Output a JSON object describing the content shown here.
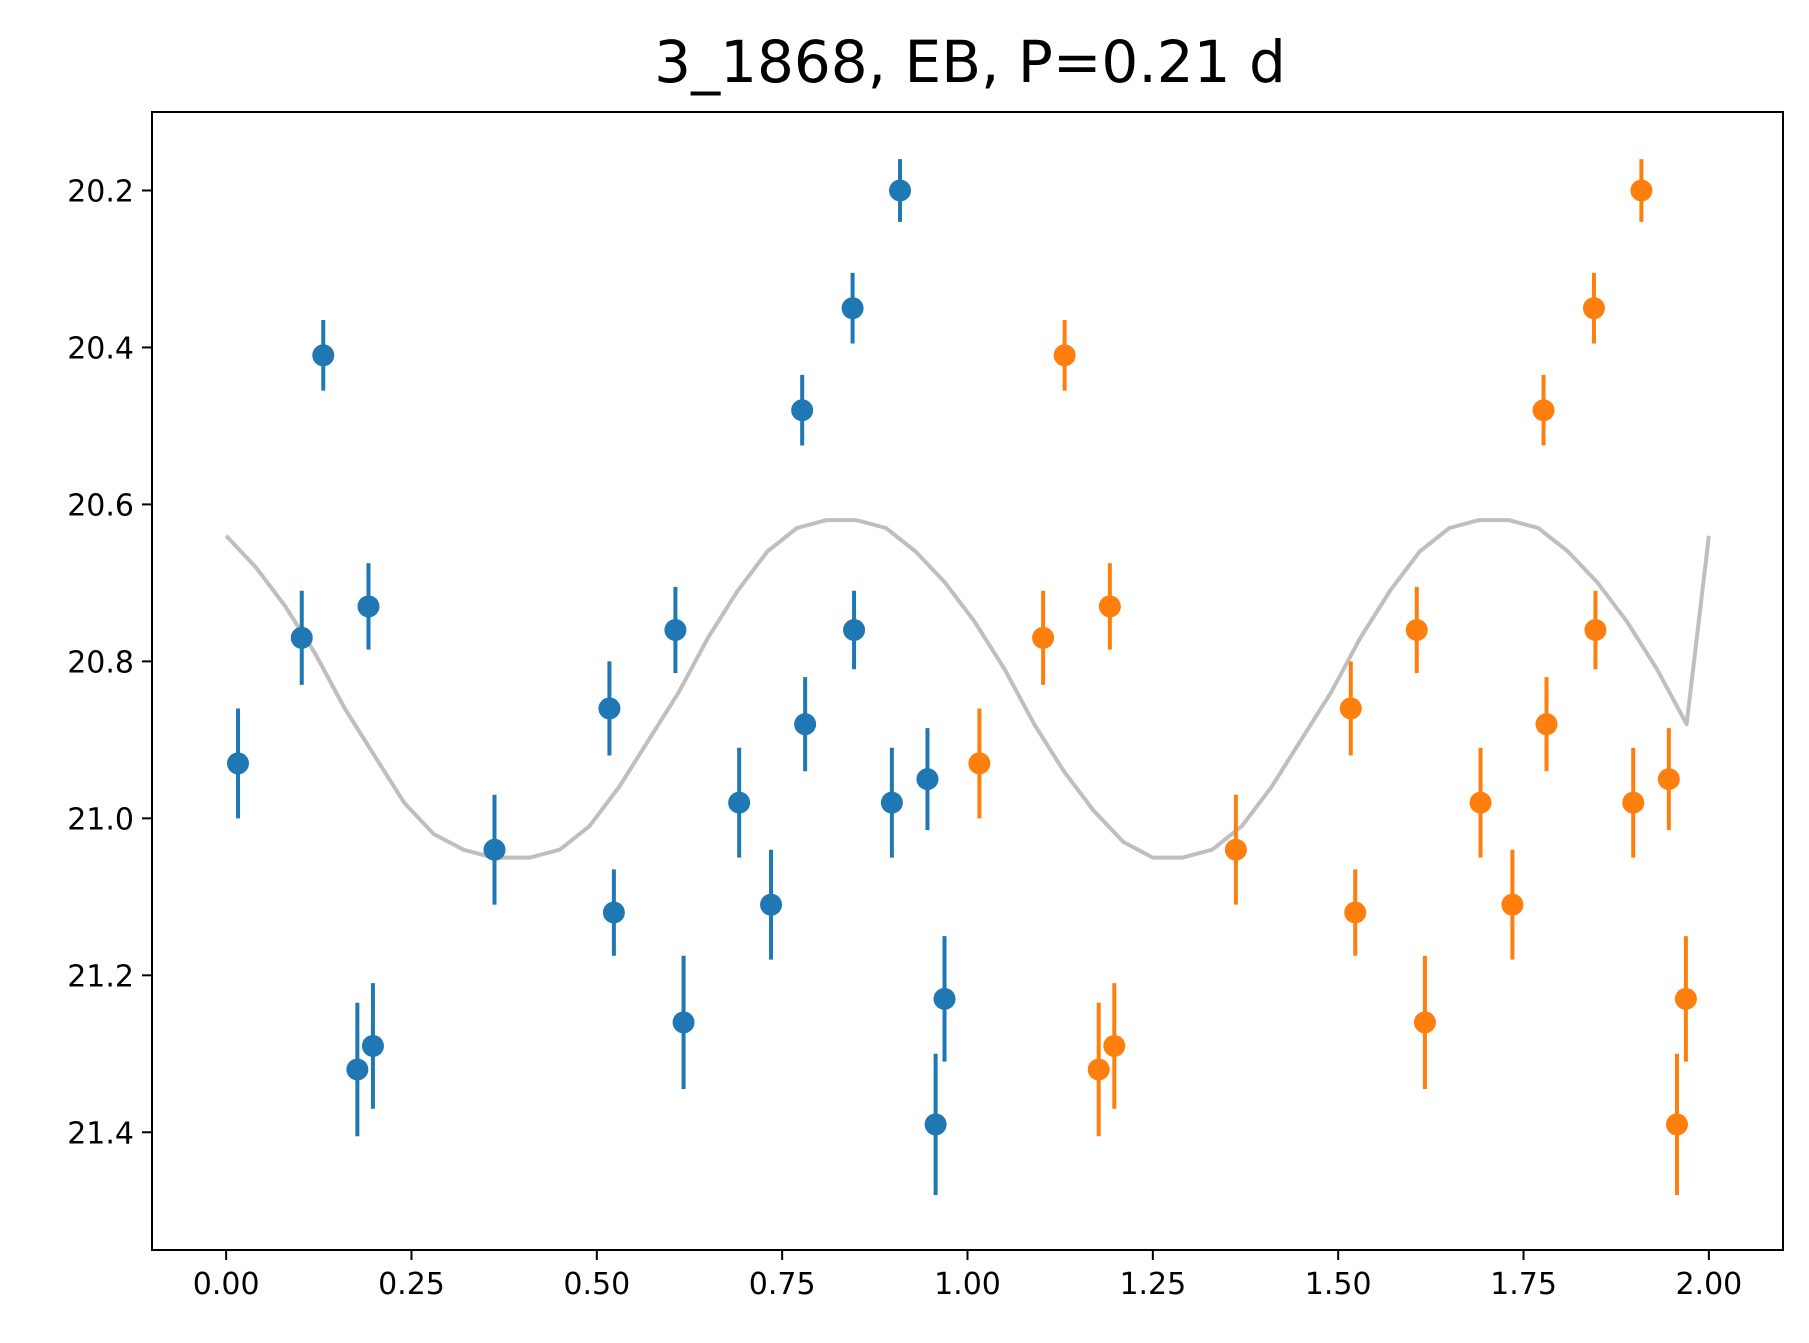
{
  "chart_data": {
    "type": "scatter",
    "title": "3_1868, EB, P=0.21 d",
    "xlabel": "",
    "ylabel": "",
    "xlim": [
      -0.1,
      2.1
    ],
    "ylim": [
      21.55,
      20.1
    ],
    "y_inverted": true,
    "grid": false,
    "x_ticks": [
      0.0,
      0.25,
      0.5,
      0.75,
      1.0,
      1.25,
      1.5,
      1.75,
      2.0
    ],
    "x_tick_labels": [
      "0.00",
      "0.25",
      "0.50",
      "0.75",
      "1.00",
      "1.25",
      "1.50",
      "1.75",
      "2.00"
    ],
    "y_ticks": [
      20.2,
      20.4,
      20.6,
      20.8,
      21.0,
      21.2,
      21.4
    ],
    "y_tick_labels": [
      "20.2",
      "20.4",
      "20.6",
      "20.8",
      "21.0",
      "21.2",
      "21.4"
    ],
    "series": [
      {
        "color": "#1f77b4",
        "kind": "errorbar",
        "points": [
          {
            "x": 0.016,
            "y": 20.93,
            "err": 0.07
          },
          {
            "x": 0.102,
            "y": 20.77,
            "err": 0.06
          },
          {
            "x": 0.131,
            "y": 20.41,
            "err": 0.045
          },
          {
            "x": 0.177,
            "y": 21.32,
            "err": 0.085
          },
          {
            "x": 0.192,
            "y": 20.73,
            "err": 0.055
          },
          {
            "x": 0.198,
            "y": 21.29,
            "err": 0.08
          },
          {
            "x": 0.362,
            "y": 21.04,
            "err": 0.07
          },
          {
            "x": 0.517,
            "y": 20.86,
            "err": 0.06
          },
          {
            "x": 0.523,
            "y": 21.12,
            "err": 0.055
          },
          {
            "x": 0.606,
            "y": 20.76,
            "err": 0.055
          },
          {
            "x": 0.617,
            "y": 21.26,
            "err": 0.085
          },
          {
            "x": 0.692,
            "y": 20.98,
            "err": 0.07
          },
          {
            "x": 0.735,
            "y": 21.11,
            "err": 0.07
          },
          {
            "x": 0.777,
            "y": 20.48,
            "err": 0.045
          },
          {
            "x": 0.781,
            "y": 20.88,
            "err": 0.06
          },
          {
            "x": 0.845,
            "y": 20.35,
            "err": 0.045
          },
          {
            "x": 0.847,
            "y": 20.76,
            "err": 0.05
          },
          {
            "x": 0.898,
            "y": 20.98,
            "err": 0.07
          },
          {
            "x": 0.909,
            "y": 20.2,
            "err": 0.04
          },
          {
            "x": 0.946,
            "y": 20.95,
            "err": 0.065
          },
          {
            "x": 0.957,
            "y": 21.39,
            "err": 0.09
          },
          {
            "x": 0.969,
            "y": 21.23,
            "err": 0.08
          }
        ]
      },
      {
        "color": "#ff7f0e",
        "kind": "errorbar",
        "points": [
          {
            "x": 1.016,
            "y": 20.93,
            "err": 0.07
          },
          {
            "x": 1.102,
            "y": 20.77,
            "err": 0.06
          },
          {
            "x": 1.131,
            "y": 20.41,
            "err": 0.045
          },
          {
            "x": 1.177,
            "y": 21.32,
            "err": 0.085
          },
          {
            "x": 1.192,
            "y": 20.73,
            "err": 0.055
          },
          {
            "x": 1.198,
            "y": 21.29,
            "err": 0.08
          },
          {
            "x": 1.362,
            "y": 21.04,
            "err": 0.07
          },
          {
            "x": 1.517,
            "y": 20.86,
            "err": 0.06
          },
          {
            "x": 1.523,
            "y": 21.12,
            "err": 0.055
          },
          {
            "x": 1.606,
            "y": 20.76,
            "err": 0.055
          },
          {
            "x": 1.617,
            "y": 21.26,
            "err": 0.085
          },
          {
            "x": 1.692,
            "y": 20.98,
            "err": 0.07
          },
          {
            "x": 1.735,
            "y": 21.11,
            "err": 0.07
          },
          {
            "x": 1.777,
            "y": 20.48,
            "err": 0.045
          },
          {
            "x": 1.781,
            "y": 20.88,
            "err": 0.06
          },
          {
            "x": 1.845,
            "y": 20.35,
            "err": 0.045
          },
          {
            "x": 1.847,
            "y": 20.76,
            "err": 0.05
          },
          {
            "x": 1.898,
            "y": 20.98,
            "err": 0.07
          },
          {
            "x": 1.909,
            "y": 20.2,
            "err": 0.04
          },
          {
            "x": 1.946,
            "y": 20.95,
            "err": 0.065
          },
          {
            "x": 1.957,
            "y": 21.39,
            "err": 0.09
          },
          {
            "x": 1.969,
            "y": 21.23,
            "err": 0.08
          }
        ]
      },
      {
        "color": "#bfbfbf",
        "kind": "line",
        "x": [
          0.0,
          0.04,
          0.08,
          0.12,
          0.16,
          0.2,
          0.24,
          0.28,
          0.32,
          0.36,
          0.41,
          0.45,
          0.49,
          0.53,
          0.57,
          0.61,
          0.65,
          0.69,
          0.73,
          0.77,
          0.81,
          0.85,
          0.89,
          0.93,
          0.97,
          1.01,
          1.05,
          1.09,
          1.13,
          1.17,
          1.21,
          1.25,
          1.29,
          1.33,
          1.37,
          1.41,
          1.45,
          1.49,
          1.53,
          1.57,
          1.61,
          1.65,
          1.69,
          1.73,
          1.77,
          1.81,
          1.85,
          1.89,
          1.93,
          1.97,
          2.0
        ],
        "y": [
          20.64,
          20.68,
          20.73,
          20.79,
          20.86,
          20.92,
          20.98,
          21.02,
          21.04,
          21.05,
          21.05,
          21.04,
          21.01,
          20.96,
          20.9,
          20.84,
          20.77,
          20.71,
          20.66,
          20.63,
          20.62,
          20.62,
          20.63,
          20.66,
          20.7,
          20.75,
          20.81,
          20.88,
          20.94,
          20.99,
          21.03,
          21.05,
          21.05,
          21.04,
          21.01,
          20.96,
          20.9,
          20.84,
          20.77,
          20.71,
          20.66,
          20.63,
          20.62,
          20.62,
          20.63,
          20.66,
          20.7,
          20.75,
          20.81,
          20.88,
          20.64
        ]
      }
    ]
  }
}
